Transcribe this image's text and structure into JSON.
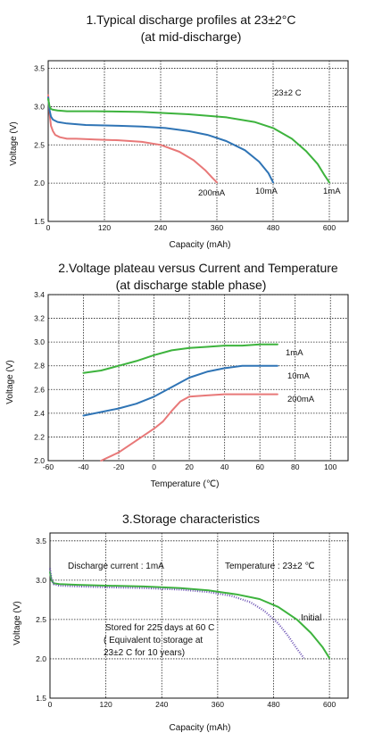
{
  "chart_data": [
    {
      "type": "line",
      "title_line1": "1.Typical discharge profiles at 23±2°C",
      "title_line2": "(at mid-discharge)",
      "xlabel": "Capacity (mAh)",
      "ylabel": "Voltage (V)",
      "xlim": [
        0,
        640
      ],
      "ylim": [
        1.5,
        3.6
      ],
      "xticks": [
        0,
        120,
        240,
        360,
        480,
        600
      ],
      "yticks": [
        1.5,
        2.0,
        2.5,
        3.0,
        3.5
      ],
      "grid": true,
      "annotation": "23±2 C",
      "series": [
        {
          "name": "200mA",
          "color": "#e87878",
          "x": [
            0,
            3,
            6,
            10,
            15,
            25,
            40,
            60,
            100,
            150,
            200,
            240,
            280,
            310,
            335,
            350,
            360
          ],
          "y": [
            3.15,
            2.9,
            2.75,
            2.68,
            2.63,
            2.6,
            2.58,
            2.58,
            2.57,
            2.56,
            2.54,
            2.5,
            2.41,
            2.3,
            2.17,
            2.07,
            2.01
          ]
        },
        {
          "name": "10mA",
          "color": "#2f74b5",
          "x": [
            0,
            3,
            6,
            10,
            20,
            40,
            80,
            150,
            200,
            250,
            300,
            340,
            380,
            420,
            450,
            470,
            480
          ],
          "y": [
            3.12,
            2.95,
            2.87,
            2.83,
            2.8,
            2.78,
            2.76,
            2.75,
            2.74,
            2.72,
            2.68,
            2.63,
            2.55,
            2.43,
            2.28,
            2.13,
            2.01
          ]
        },
        {
          "name": "1mA",
          "color": "#3db33d",
          "x": [
            0,
            3,
            6,
            10,
            20,
            40,
            100,
            200,
            300,
            380,
            440,
            480,
            520,
            550,
            575,
            590,
            600
          ],
          "y": [
            3.1,
            3.0,
            2.97,
            2.96,
            2.95,
            2.94,
            2.94,
            2.93,
            2.9,
            2.86,
            2.8,
            2.72,
            2.58,
            2.42,
            2.25,
            2.1,
            2.01
          ]
        }
      ]
    },
    {
      "type": "line",
      "title_line1": "2.Voltage plateau versus Current and Temperature",
      "title_line2": "(at discharge stable phase)",
      "xlabel": "Temperature (℃)",
      "ylabel": "Voltage (V)",
      "xlim": [
        -60,
        110
      ],
      "ylim": [
        2.0,
        3.4
      ],
      "xticks": [
        -60,
        -40,
        -20,
        0,
        20,
        40,
        60,
        80,
        100
      ],
      "yticks": [
        2.0,
        2.2,
        2.4,
        2.6,
        2.8,
        3.0,
        3.2,
        3.4
      ],
      "grid": true,
      "series": [
        {
          "name": "1mA",
          "color": "#3db33d",
          "x": [
            -40,
            -30,
            -20,
            -10,
            0,
            10,
            20,
            30,
            40,
            50,
            60,
            70
          ],
          "y": [
            2.74,
            2.76,
            2.8,
            2.84,
            2.89,
            2.93,
            2.95,
            2.96,
            2.97,
            2.97,
            2.98,
            2.98
          ]
        },
        {
          "name": "10mA",
          "color": "#2f74b5",
          "x": [
            -40,
            -30,
            -20,
            -10,
            0,
            10,
            20,
            30,
            40,
            50,
            60,
            70
          ],
          "y": [
            2.38,
            2.41,
            2.44,
            2.48,
            2.54,
            2.62,
            2.7,
            2.75,
            2.78,
            2.8,
            2.8,
            2.8
          ]
        },
        {
          "name": "200mA",
          "color": "#e87878",
          "x": [
            -30,
            -20,
            -10,
            0,
            5,
            10,
            15,
            20,
            30,
            40,
            50,
            60,
            70
          ],
          "y": [
            2.0,
            2.07,
            2.17,
            2.27,
            2.33,
            2.42,
            2.5,
            2.54,
            2.55,
            2.56,
            2.56,
            2.56,
            2.56
          ]
        }
      ]
    },
    {
      "type": "line",
      "title": "3.Storage characteristics",
      "xlabel": "Capacity (mAh)",
      "ylabel": "Voltage (V)",
      "xlim": [
        0,
        640
      ],
      "ylim": [
        1.5,
        3.6
      ],
      "xticks": [
        0,
        120,
        240,
        360,
        480,
        600
      ],
      "yticks": [
        1.5,
        2.0,
        2.5,
        3.0,
        3.5
      ],
      "grid": true,
      "annotations": {
        "discharge_current": "Discharge current : 1mA",
        "temperature": "Temperature : 23±2 ℃",
        "stored_line1": "Stored for 225 days at 60 C",
        "stored_line2": "( Equivalent to storage at",
        "stored_line3": "23±2 C  for 10 years)"
      },
      "series": [
        {
          "name": "Initial",
          "color": "#3db33d",
          "style": "solid",
          "x": [
            0,
            3,
            8,
            20,
            60,
            120,
            200,
            280,
            340,
            400,
            450,
            490,
            530,
            560,
            585,
            600
          ],
          "y": [
            3.1,
            3.0,
            2.96,
            2.95,
            2.94,
            2.93,
            2.92,
            2.9,
            2.87,
            2.82,
            2.76,
            2.66,
            2.5,
            2.33,
            2.15,
            2.01
          ]
        },
        {
          "name": "",
          "color": "#6a4fb3",
          "style": "dotted",
          "x": [
            0,
            3,
            8,
            20,
            60,
            120,
            200,
            280,
            340,
            390,
            430,
            460,
            490,
            510,
            530,
            545
          ],
          "y": [
            3.15,
            3.02,
            2.95,
            2.93,
            2.92,
            2.91,
            2.9,
            2.88,
            2.85,
            2.8,
            2.72,
            2.61,
            2.45,
            2.3,
            2.13,
            2.01
          ]
        }
      ]
    }
  ]
}
